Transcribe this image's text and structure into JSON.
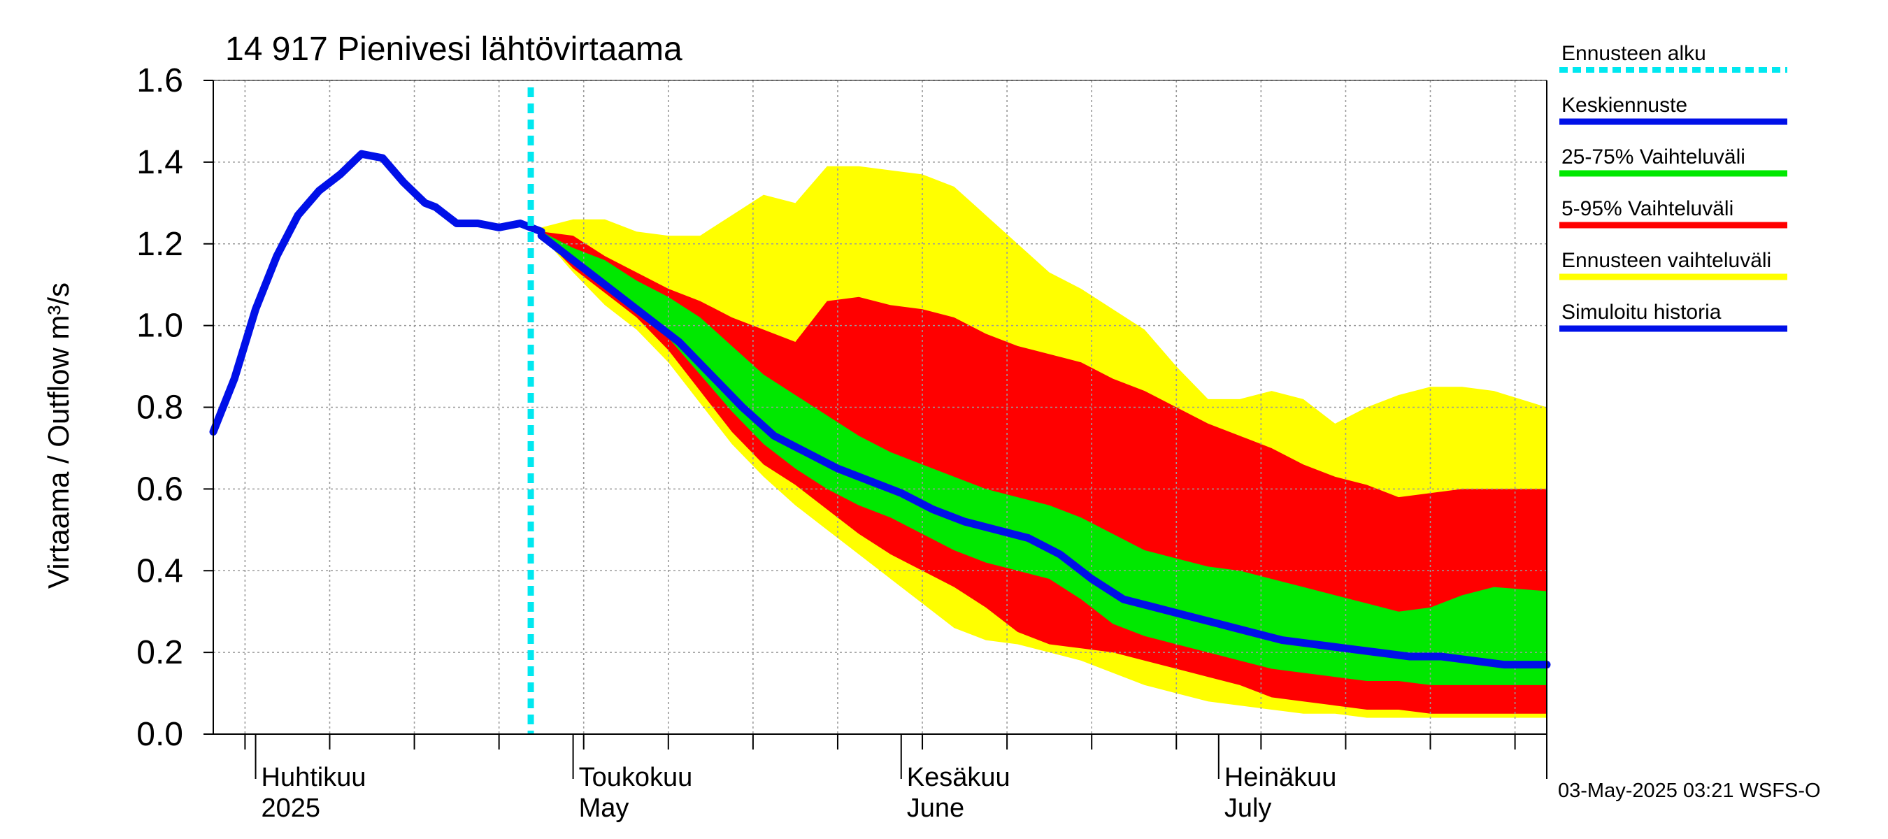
{
  "chart_data": {
    "type": "area",
    "title": "14 917 Pienivesi lähtövirtaama",
    "ylabel": "Virtaama / Outflow    m³/s",
    "ylim": [
      0,
      1.6
    ],
    "yticks": [
      "0.0",
      "0.2",
      "0.4",
      "0.6",
      "0.8",
      "1.0",
      "1.2",
      "1.4",
      "1.6"
    ],
    "xlim": [
      "2025-03-28",
      "2025-08-01"
    ],
    "month_labels": [
      {
        "date": "2025-04-01",
        "fi": "Huhtikuu",
        "en": "2025"
      },
      {
        "date": "2025-05-01",
        "fi": "Toukokuu",
        "en": "May"
      },
      {
        "date": "2025-06-01",
        "fi": "Kesäkuu",
        "en": "June"
      },
      {
        "date": "2025-07-01",
        "fi": "Heinäkuu",
        "en": "July"
      }
    ],
    "forecast_start": "2025-04-27",
    "grid": true,
    "legend_position": "right",
    "footer": "03-May-2025 03:21 WSFS-O",
    "colors": {
      "forecast_start": "#00e8f0",
      "median": "#0010e8",
      "iqr": "#00e800",
      "p5_95": "#ff0000",
      "range": "#ffff00",
      "history": "#0010e8",
      "grid": "#9a9a9a"
    },
    "legend": [
      {
        "label": "Ennusteen alku",
        "key": "forecast_start",
        "style": "dotted"
      },
      {
        "label": "Keskiennuste",
        "key": "median",
        "style": "solid"
      },
      {
        "label": "25-75% Vaihteluväli",
        "key": "iqr",
        "style": "solid"
      },
      {
        "label": "5-95% Vaihteluväli",
        "key": "p5_95",
        "style": "solid"
      },
      {
        "label": "Ennusteen vaihteluväli",
        "key": "range",
        "style": "solid"
      },
      {
        "label": "Simuloitu historia",
        "key": "history",
        "style": "solid"
      }
    ],
    "series": [
      {
        "name": "Simuloitu historia",
        "x": [
          "2025-03-28",
          "2025-03-30",
          "2025-04-01",
          "2025-04-03",
          "2025-04-05",
          "2025-04-07",
          "2025-04-09",
          "2025-04-11",
          "2025-04-13",
          "2025-04-15",
          "2025-04-17",
          "2025-04-18",
          "2025-04-20",
          "2025-04-22",
          "2025-04-24",
          "2025-04-26",
          "2025-04-27",
          "2025-04-28"
        ],
        "y": [
          0.74,
          0.87,
          1.04,
          1.17,
          1.27,
          1.33,
          1.37,
          1.42,
          1.41,
          1.35,
          1.3,
          1.29,
          1.25,
          1.25,
          1.24,
          1.25,
          1.24,
          1.23
        ]
      },
      {
        "name": "Keskiennuste",
        "x": [
          "2025-04-28",
          "2025-04-30",
          "2025-05-02",
          "2025-05-05",
          "2025-05-08",
          "2025-05-11",
          "2025-05-14",
          "2025-05-17",
          "2025-05-20",
          "2025-05-23",
          "2025-05-26",
          "2025-05-29",
          "2025-06-01",
          "2025-06-04",
          "2025-06-07",
          "2025-06-10",
          "2025-06-13",
          "2025-06-16",
          "2025-06-19",
          "2025-06-22",
          "2025-06-25",
          "2025-06-28",
          "2025-07-01",
          "2025-07-04",
          "2025-07-07",
          "2025-07-10",
          "2025-07-13",
          "2025-07-16",
          "2025-07-19",
          "2025-07-22",
          "2025-07-25",
          "2025-07-28",
          "2025-08-01"
        ],
        "y": [
          1.22,
          1.18,
          1.14,
          1.08,
          1.02,
          0.96,
          0.88,
          0.8,
          0.73,
          0.69,
          0.65,
          0.62,
          0.59,
          0.55,
          0.52,
          0.5,
          0.48,
          0.44,
          0.38,
          0.33,
          0.31,
          0.29,
          0.27,
          0.25,
          0.23,
          0.22,
          0.21,
          0.2,
          0.19,
          0.19,
          0.18,
          0.17,
          0.17
        ]
      },
      {
        "name": "25-75% Vaihteluväli",
        "x": [
          "2025-04-28",
          "2025-05-01",
          "2025-05-04",
          "2025-05-07",
          "2025-05-10",
          "2025-05-13",
          "2025-05-16",
          "2025-05-19",
          "2025-05-22",
          "2025-05-25",
          "2025-05-28",
          "2025-05-31",
          "2025-06-03",
          "2025-06-06",
          "2025-06-09",
          "2025-06-12",
          "2025-06-15",
          "2025-06-18",
          "2025-06-21",
          "2025-06-24",
          "2025-06-27",
          "2025-06-30",
          "2025-07-03",
          "2025-07-06",
          "2025-07-09",
          "2025-07-12",
          "2025-07-15",
          "2025-07-18",
          "2025-07-21",
          "2025-07-24",
          "2025-07-27",
          "2025-08-01"
        ],
        "low": [
          1.22,
          1.15,
          1.1,
          1.04,
          0.97,
          0.88,
          0.79,
          0.71,
          0.65,
          0.6,
          0.56,
          0.53,
          0.49,
          0.45,
          0.42,
          0.4,
          0.38,
          0.33,
          0.27,
          0.24,
          0.22,
          0.2,
          0.18,
          0.16,
          0.15,
          0.14,
          0.13,
          0.13,
          0.12,
          0.12,
          0.12,
          0.12
        ],
        "high": [
          1.23,
          1.19,
          1.16,
          1.11,
          1.07,
          1.02,
          0.95,
          0.88,
          0.83,
          0.78,
          0.73,
          0.69,
          0.66,
          0.63,
          0.6,
          0.58,
          0.56,
          0.53,
          0.49,
          0.45,
          0.43,
          0.41,
          0.4,
          0.38,
          0.36,
          0.34,
          0.32,
          0.3,
          0.31,
          0.34,
          0.36,
          0.35
        ]
      },
      {
        "name": "5-95% Vaihteluväli",
        "x": [
          "2025-04-28",
          "2025-05-01",
          "2025-05-04",
          "2025-05-07",
          "2025-05-10",
          "2025-05-13",
          "2025-05-16",
          "2025-05-19",
          "2025-05-22",
          "2025-05-25",
          "2025-05-28",
          "2025-05-31",
          "2025-06-03",
          "2025-06-06",
          "2025-06-09",
          "2025-06-12",
          "2025-06-15",
          "2025-06-18",
          "2025-06-21",
          "2025-06-24",
          "2025-06-27",
          "2025-06-30",
          "2025-07-03",
          "2025-07-06",
          "2025-07-09",
          "2025-07-12",
          "2025-07-15",
          "2025-07-18",
          "2025-07-21",
          "2025-07-24",
          "2025-07-27",
          "2025-08-01"
        ],
        "low": [
          1.22,
          1.14,
          1.08,
          1.02,
          0.94,
          0.84,
          0.74,
          0.66,
          0.61,
          0.55,
          0.49,
          0.44,
          0.4,
          0.36,
          0.31,
          0.25,
          0.22,
          0.21,
          0.2,
          0.18,
          0.16,
          0.14,
          0.12,
          0.09,
          0.08,
          0.07,
          0.06,
          0.06,
          0.05,
          0.05,
          0.05,
          0.05
        ],
        "high": [
          1.23,
          1.22,
          1.17,
          1.13,
          1.09,
          1.06,
          1.02,
          0.99,
          0.96,
          1.06,
          1.07,
          1.05,
          1.04,
          1.02,
          0.98,
          0.95,
          0.93,
          0.91,
          0.87,
          0.84,
          0.8,
          0.76,
          0.73,
          0.7,
          0.66,
          0.63,
          0.61,
          0.58,
          0.59,
          0.6,
          0.6,
          0.6
        ]
      },
      {
        "name": "Ennusteen vaihteluväli",
        "x": [
          "2025-04-28",
          "2025-05-01",
          "2025-05-04",
          "2025-05-07",
          "2025-05-10",
          "2025-05-13",
          "2025-05-16",
          "2025-05-19",
          "2025-05-22",
          "2025-05-25",
          "2025-05-28",
          "2025-05-31",
          "2025-06-03",
          "2025-06-06",
          "2025-06-09",
          "2025-06-12",
          "2025-06-15",
          "2025-06-18",
          "2025-06-21",
          "2025-06-24",
          "2025-06-27",
          "2025-06-30",
          "2025-07-03",
          "2025-07-06",
          "2025-07-09",
          "2025-07-12",
          "2025-07-15",
          "2025-07-18",
          "2025-07-21",
          "2025-07-24",
          "2025-07-27",
          "2025-08-01"
        ],
        "low": [
          1.22,
          1.13,
          1.05,
          0.99,
          0.91,
          0.81,
          0.71,
          0.63,
          0.56,
          0.5,
          0.44,
          0.38,
          0.32,
          0.26,
          0.23,
          0.22,
          0.2,
          0.18,
          0.15,
          0.12,
          0.1,
          0.08,
          0.07,
          0.06,
          0.05,
          0.05,
          0.04,
          0.04,
          0.04,
          0.04,
          0.04,
          0.04
        ],
        "high": [
          1.24,
          1.26,
          1.26,
          1.23,
          1.22,
          1.22,
          1.27,
          1.32,
          1.3,
          1.39,
          1.39,
          1.38,
          1.37,
          1.34,
          1.27,
          1.2,
          1.13,
          1.09,
          1.04,
          0.99,
          0.9,
          0.82,
          0.82,
          0.84,
          0.82,
          0.76,
          0.8,
          0.83,
          0.85,
          0.85,
          0.84,
          0.8
        ]
      }
    ]
  }
}
